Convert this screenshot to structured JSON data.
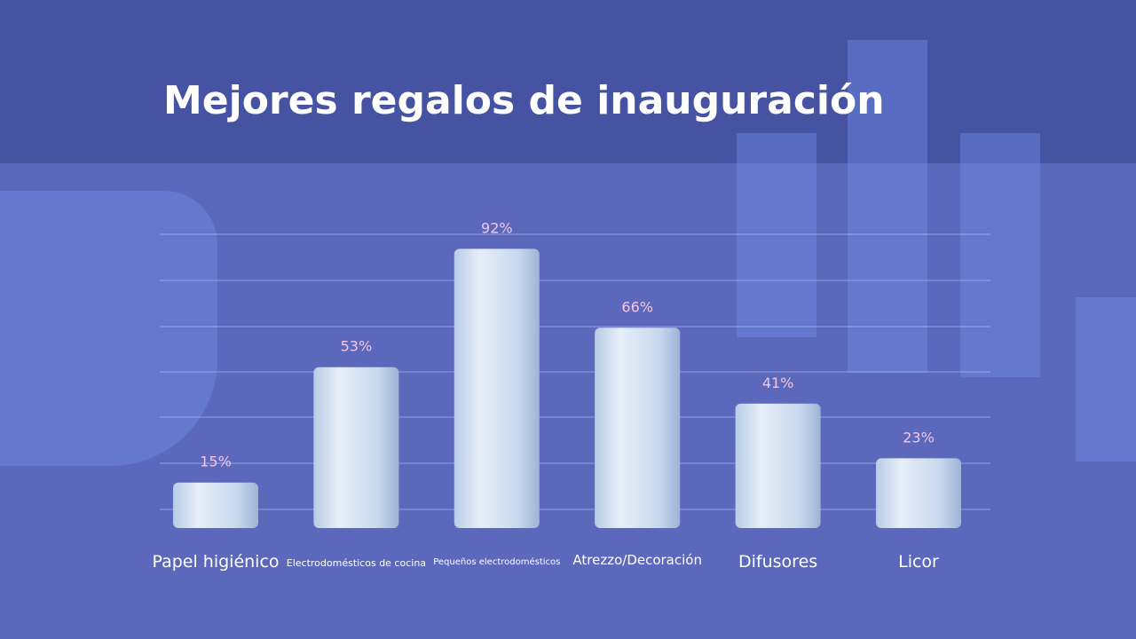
{
  "chart_data": {
    "type": "bar",
    "title": "Mejores regalos de inauguración",
    "categories": [
      "Papel higiénico",
      "Electrodomésticos de cocina",
      "Pequeños electrodomésticos",
      "Atrezzo/Decoración",
      "Difusores",
      "Licor"
    ],
    "values": [
      15,
      53,
      92,
      66,
      41,
      23
    ],
    "data_labels": [
      "15%",
      "53%",
      "92%",
      "66%",
      "41%",
      "23%"
    ],
    "ylim": [
      0,
      100
    ],
    "grid": true,
    "colors": {
      "bar": "#d6e4f5",
      "label": "#f2c6ea",
      "background": "#5c68bb",
      "header": "#4553a2"
    }
  }
}
